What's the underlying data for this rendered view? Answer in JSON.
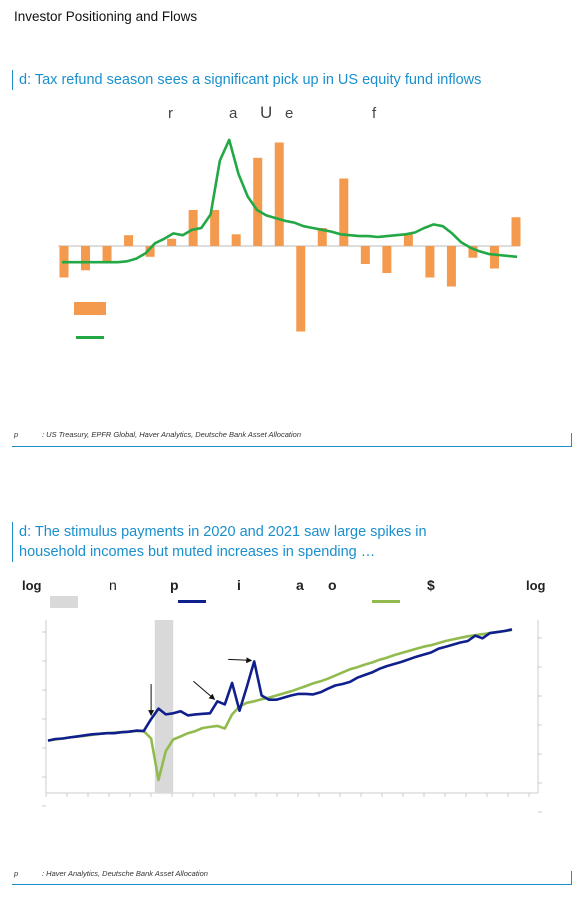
{
  "header": {
    "page_title": "Investor Positioning and Flows"
  },
  "panel_a": {
    "title_prefix": "d",
    "title_text": "d: Tax refund season sees a significant pick up in US equity fund inflows",
    "subtitle_fragments": [
      "r",
      "a",
      "U",
      "e",
      "f"
    ],
    "source_label": "p",
    "source_text": ": US Treasury, EPFR Global, Haver Analytics, Deutsche Bank Asset Allocation"
  },
  "panel_b": {
    "title_prefix": "d",
    "title_line1": "d: The stimulus payments in 2020 and 2021 saw large spikes in",
    "title_line2": "household incomes but muted increases in spending …",
    "axis_left": "log",
    "axis_right": "log",
    "legend_fragments": [
      "n",
      "p",
      "i",
      "a",
      "o",
      "$"
    ],
    "source_label": "p",
    "source_text": ": Haver Analytics, Deutsche Bank Asset Allocation"
  },
  "colors": {
    "accent": "#1a8fce",
    "bar": "#f39a4e",
    "flow_line": "#23a846",
    "income_line": "#0f1f8c",
    "spending_line": "#92bb4f",
    "recession_shade": "#d9d9d9"
  },
  "chart_data": [
    {
      "type": "bar",
      "ylim": [
        -100,
        110
      ],
      "bars": [
        -35,
        -27,
        -18,
        12,
        -12,
        8,
        40,
        40,
        13,
        98,
        115,
        -95,
        20,
        75,
        -20,
        -30,
        13,
        -35,
        -45,
        -13,
        -25,
        32
      ],
      "series_line": [
        -18,
        -18,
        -18,
        -18,
        -18,
        -18,
        -18,
        -17,
        -14,
        -8,
        3,
        8,
        14,
        12,
        18,
        20,
        35,
        95,
        118,
        80,
        55,
        40,
        34,
        31,
        28,
        26,
        22,
        20,
        18,
        16,
        13,
        12,
        11,
        11,
        10,
        11,
        12,
        13,
        15,
        20,
        24,
        22,
        14,
        4,
        -2,
        -6,
        -9,
        -10,
        -11,
        -12
      ]
    },
    {
      "type": "line",
      "shaded_x_range": [
        14.5,
        17
      ],
      "income": [
        100,
        103,
        104,
        106,
        108,
        110,
        112,
        113,
        114,
        114,
        116,
        117,
        119,
        118,
        141,
        161,
        150,
        152,
        156,
        148,
        150,
        151,
        152,
        175,
        169,
        210,
        157,
        203,
        251,
        186,
        178,
        178,
        182,
        186,
        189,
        189,
        188,
        192,
        199,
        205,
        208,
        212,
        220,
        225,
        230,
        237,
        242,
        246,
        250,
        255,
        260,
        264,
        268,
        275,
        279,
        283,
        287,
        290,
        300,
        295,
        305,
        307,
        309,
        312
      ],
      "spending": [
        100,
        102,
        104,
        106,
        108,
        109,
        111,
        113,
        114,
        115,
        116,
        117,
        118,
        118,
        104,
        25,
        80,
        102,
        108,
        114,
        118,
        124,
        126,
        128,
        123,
        150,
        165,
        172,
        175,
        179,
        182,
        186,
        190,
        194,
        199,
        204,
        209,
        213,
        218,
        224,
        230,
        236,
        240,
        245,
        249,
        254,
        258,
        263,
        267,
        271,
        275,
        279,
        282,
        286,
        290,
        293,
        296,
        299,
        301,
        303,
        305,
        307,
        309,
        311
      ]
    }
  ]
}
